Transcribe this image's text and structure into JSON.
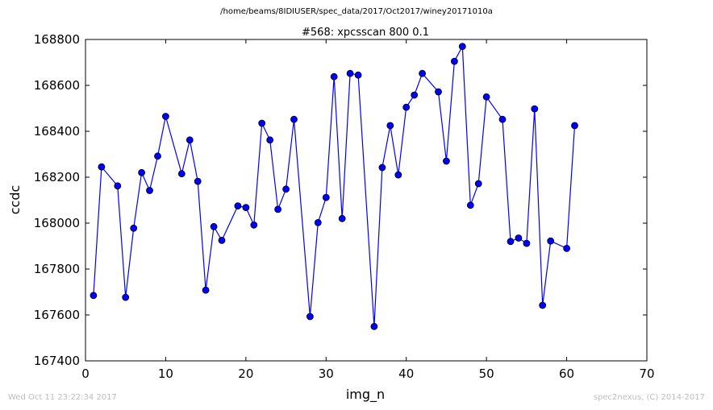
{
  "figure": {
    "suptitle": "/home/beams/8IDIUSER/spec_data/2017/Oct2017/winey20171010a",
    "timestamp": "Wed Oct 11 23:22:34 2017",
    "credit": "spec2nexus, (C) 2014-2017"
  },
  "chart_data": {
    "type": "line",
    "title": "#568: xpcsscan 800 0.1",
    "xlabel": "img_n",
    "ylabel": "ccdc",
    "xlim": [
      0,
      70
    ],
    "ylim": [
      167400,
      168800
    ],
    "xticks": [
      0,
      10,
      20,
      30,
      40,
      50,
      60,
      70
    ],
    "yticks": [
      167400,
      167600,
      167800,
      168000,
      168200,
      168400,
      168600,
      168800
    ],
    "grid": false,
    "line_color": "#0000ff",
    "marker": "circle",
    "x": [
      1,
      2,
      4,
      5,
      6,
      7,
      8,
      9,
      10,
      12,
      13,
      14,
      15,
      16,
      17,
      19,
      20,
      21,
      22,
      23,
      24,
      25,
      26,
      28,
      29,
      30,
      31,
      32,
      33,
      34,
      36,
      37,
      38,
      39,
      40,
      41,
      42,
      44,
      45,
      46,
      47,
      48,
      49,
      50,
      52,
      53,
      54,
      55,
      56,
      57,
      58,
      60,
      61
    ],
    "y": [
      167685,
      168245,
      168162,
      167677,
      167978,
      168220,
      168142,
      168292,
      168465,
      168215,
      168362,
      168182,
      167708,
      167985,
      167925,
      168075,
      168068,
      167992,
      168435,
      168362,
      168060,
      168148,
      168452,
      167593,
      168002,
      168112,
      168638,
      168020,
      168652,
      168645,
      167550,
      168242,
      168425,
      168210,
      168505,
      168558,
      168652,
      168572,
      168270,
      168705,
      168770,
      168078,
      168172,
      168550,
      168452,
      167920,
      167935,
      167912,
      168498,
      167642,
      167922,
      167890,
      168425
    ]
  }
}
